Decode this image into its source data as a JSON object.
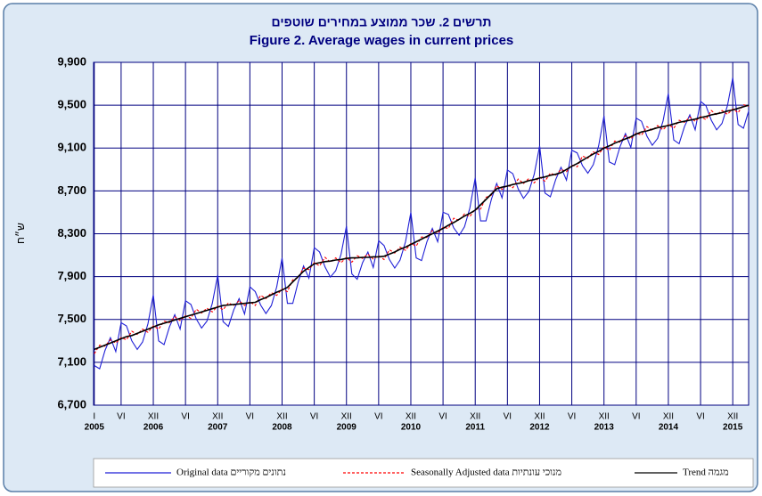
{
  "chart_data": {
    "type": "line",
    "title": "תרשים 2. שכר ממוצע במחירים שוטפים",
    "subtitle": "Figure 2.  Average wages  in  current  prices",
    "y_label": "ש״ח",
    "categories": [
      "I",
      null,
      null,
      null,
      null,
      "VI",
      null,
      null,
      null,
      null,
      null,
      "XII",
      null,
      null,
      null,
      null,
      null,
      "VI",
      null,
      null,
      null,
      null,
      null,
      "XII",
      null,
      null,
      null,
      null,
      null,
      "VI",
      null,
      null,
      null,
      null,
      null,
      "XII",
      null,
      null,
      null,
      null,
      null,
      "VI",
      null,
      null,
      null,
      null,
      null,
      "XII",
      null,
      null,
      null,
      null,
      null,
      "VI",
      null,
      null,
      null,
      null,
      null,
      "XII",
      null,
      null,
      null,
      null,
      null,
      "VI",
      null,
      null,
      null,
      null,
      null,
      "XII",
      null,
      null,
      null,
      null,
      null,
      "VI",
      null,
      null,
      null,
      null,
      null,
      "XII",
      null,
      null,
      null,
      null,
      null,
      "VI",
      null,
      null,
      null,
      null,
      null,
      "XII",
      null,
      null,
      null,
      null,
      null,
      "VI",
      null,
      null,
      null,
      null,
      null,
      "XII",
      null,
      null,
      null,
      null,
      null,
      "VI",
      null,
      null,
      null,
      null,
      null,
      "XII",
      null,
      null,
      null
    ],
    "category_years": [
      "2005",
      null,
      null,
      null,
      null,
      null,
      null,
      null,
      null,
      null,
      null,
      "2006",
      null,
      null,
      null,
      null,
      null,
      null,
      null,
      null,
      null,
      null,
      null,
      "2007",
      null,
      null,
      null,
      null,
      null,
      null,
      null,
      null,
      null,
      null,
      null,
      "2008",
      null,
      null,
      null,
      null,
      null,
      null,
      null,
      null,
      null,
      null,
      null,
      "2009",
      null,
      null,
      null,
      null,
      null,
      null,
      null,
      null,
      null,
      null,
      null,
      "2010",
      null,
      null,
      null,
      null,
      null,
      null,
      null,
      null,
      null,
      null,
      null,
      "2011",
      null,
      null,
      null,
      null,
      null,
      null,
      null,
      null,
      null,
      null,
      null,
      "2012",
      null,
      null,
      null,
      null,
      null,
      null,
      null,
      null,
      null,
      null,
      null,
      "2013",
      null,
      null,
      null,
      null,
      null,
      null,
      null,
      null,
      null,
      null,
      null,
      "2014",
      null,
      null,
      null,
      null,
      null,
      null,
      null,
      null,
      null,
      null,
      null,
      "2015",
      null,
      null,
      null
    ],
    "ylim": [
      6700,
      9900
    ],
    "yticks": [
      {
        "value": 6700,
        "label": "6,700"
      },
      {
        "value": 7100,
        "label": "7,100"
      },
      {
        "value": 7500,
        "label": "7,500"
      },
      {
        "value": 7900,
        "label": "7,900"
      },
      {
        "value": 8300,
        "label": "8,300"
      },
      {
        "value": 8700,
        "label": "8,700"
      },
      {
        "value": 9100,
        "label": "9,100"
      },
      {
        "value": 9500,
        "label": "9,500"
      },
      {
        "value": 9900,
        "label": "9,900"
      }
    ],
    "grid": true,
    "legend": "bottom",
    "series": [
      {
        "name": "Original data  נתונים מקוריים",
        "color": "#1f1fd6",
        "dash": false,
        "values": [
          7070,
          7040,
          7210,
          7330,
          7200,
          7470,
          7440,
          7300,
          7220,
          7290,
          7460,
          7730,
          7300,
          7265,
          7430,
          7545,
          7410,
          7675,
          7640,
          7505,
          7420,
          7485,
          7650,
          7915,
          7480,
          7435,
          7590,
          7695,
          7550,
          7805,
          7760,
          7635,
          7555,
          7630,
          7805,
          8075,
          7650,
          7650,
          7850,
          8000,
          7885,
          8170,
          8130,
          7990,
          7895,
          7955,
          8110,
          8370,
          7925,
          7875,
          8030,
          8130,
          7985,
          8235,
          8190,
          8060,
          7980,
          8055,
          8225,
          8500,
          8075,
          8050,
          8225,
          8350,
          8225,
          8500,
          8480,
          8355,
          8285,
          8365,
          8540,
          8820,
          8420,
          8420,
          8620,
          8770,
          8635,
          8895,
          8860,
          8720,
          8630,
          8695,
          8855,
          9120,
          8680,
          8645,
          8805,
          8920,
          8800,
          9080,
          9055,
          8935,
          8865,
          8945,
          9120,
          9400,
          8970,
          8945,
          9115,
          9235,
          9105,
          9380,
          9350,
          9210,
          9125,
          9190,
          9350,
          9610,
          9175,
          9140,
          9300,
          9410,
          9270,
          9535,
          9495,
          9360,
          9270,
          9330,
          9495,
          9755,
          9320,
          9285,
          9450
        ]
      },
      {
        "name": "Seasonally Adjusted data  מנוכי עונתיות",
        "color": "#ff0000",
        "dash": true,
        "values": [
          7180,
          7260,
          7250,
          7310,
          7280,
          7330,
          7310,
          7390,
          7360,
          7410,
          7380,
          7440,
          7410,
          7485,
          7470,
          7525,
          7490,
          7535,
          7510,
          7595,
          7560,
          7605,
          7570,
          7625,
          7590,
          7655,
          7630,
          7675,
          7630,
          7665,
          7630,
          7725,
          7695,
          7750,
          7725,
          7785,
          7760,
          7870,
          7890,
          7980,
          7965,
          8030,
          8000,
          8080,
          8035,
          8075,
          8030,
          8080,
          8035,
          8095,
          8070,
          8110,
          8065,
          8095,
          8060,
          8150,
          8120,
          8175,
          8145,
          8210,
          8185,
          8270,
          8265,
          8330,
          8305,
          8360,
          8350,
          8445,
          8425,
          8485,
          8460,
          8530,
          8530,
          8640,
          8660,
          8750,
          8715,
          8755,
          8730,
          8810,
          8770,
          8815,
          8775,
          8830,
          8790,
          8865,
          8845,
          8900,
          8880,
          8940,
          8925,
          9025,
          9005,
          9065,
          9040,
          9110,
          9080,
          9165,
          9155,
          9215,
          9185,
          9240,
          9220,
          9300,
          9265,
          9310,
          9270,
          9320,
          9285,
          9360,
          9340,
          9390,
          9350,
          9395,
          9365,
          9450,
          9410,
          9450,
          9415,
          9465,
          9430,
          9505,
          9490
        ]
      },
      {
        "name": "Trend  מגמה",
        "color": "#000000",
        "dash": false,
        "values": [
          7220,
          7240,
          7260,
          7280,
          7300,
          7320,
          7340,
          7350,
          7370,
          7390,
          7410,
          7430,
          7450,
          7465,
          7480,
          7495,
          7510,
          7525,
          7540,
          7555,
          7570,
          7585,
          7600,
          7615,
          7630,
          7635,
          7640,
          7645,
          7650,
          7655,
          7660,
          7685,
          7705,
          7730,
          7755,
          7775,
          7800,
          7850,
          7900,
          7950,
          7985,
          8020,
          8030,
          8040,
          8045,
          8055,
          8060,
          8070,
          8075,
          8075,
          8080,
          8080,
          8085,
          8085,
          8090,
          8110,
          8130,
          8155,
          8175,
          8200,
          8225,
          8250,
          8275,
          8300,
          8325,
          8350,
          8380,
          8405,
          8435,
          8465,
          8490,
          8520,
          8570,
          8620,
          8670,
          8720,
          8735,
          8745,
          8760,
          8770,
          8780,
          8795,
          8805,
          8820,
          8830,
          8845,
          8855,
          8870,
          8900,
          8930,
          8955,
          8985,
          9015,
          9045,
          9070,
          9100,
          9120,
          9145,
          9165,
          9185,
          9205,
          9230,
          9250,
          9260,
          9275,
          9290,
          9300,
          9310,
          9325,
          9340,
          9350,
          9360,
          9370,
          9385,
          9395,
          9410,
          9420,
          9430,
          9445,
          9455,
          9470,
          9485,
          9500
        ]
      }
    ]
  }
}
